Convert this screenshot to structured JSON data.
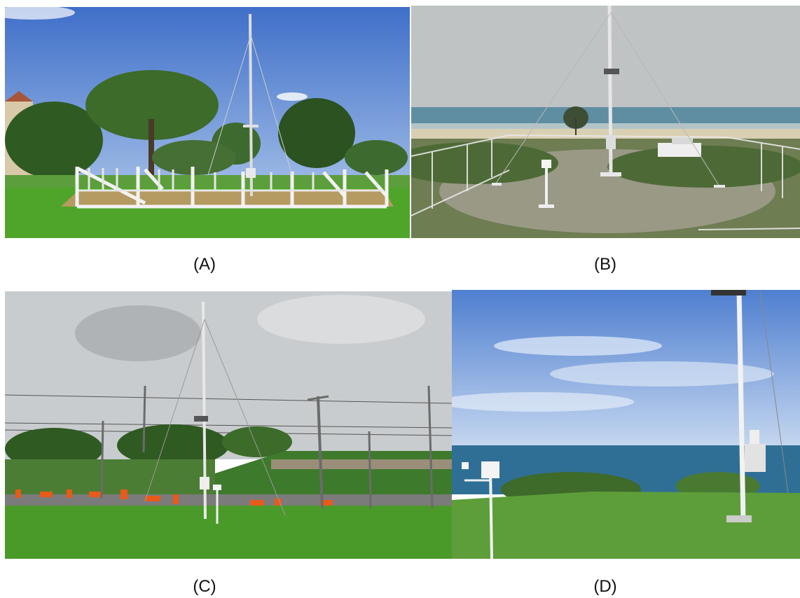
{
  "panels": [
    {
      "id": "A",
      "caption": "(A)"
    },
    {
      "id": "B",
      "caption": "(B)"
    },
    {
      "id": "C",
      "caption": "(C)"
    },
    {
      "id": "D",
      "caption": "(D)"
    }
  ],
  "colors": {
    "sky_blue": "#5b86d6",
    "sky_overcast": "#c9ccce",
    "grass": "#4fa52a",
    "sea": "#5f8ea2",
    "fence": "#f2f2f2",
    "cone_orange": "#e85a1a"
  }
}
